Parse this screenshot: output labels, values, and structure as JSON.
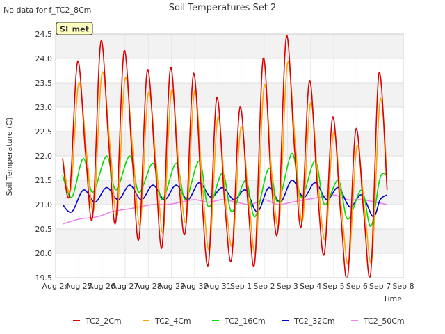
{
  "note": "No data for f_TC2_8Cm",
  "badge": "SI_met",
  "chart_data": {
    "type": "line",
    "title": "Soil Temperatures Set 2",
    "xlabel": "Time",
    "ylabel": "Soil Temperature (C)",
    "x_ticks": [
      "Aug 24",
      "Aug 25",
      "Aug 26",
      "Aug 27",
      "Aug 28",
      "Aug 29",
      "Aug 30",
      "Aug 31",
      "Sep 1",
      "Sep 2",
      "Sep 3",
      "Sep 4",
      "Sep 5",
      "Sep 6",
      "Sep 7",
      "Sep 8"
    ],
    "y_ticks": [
      "19.5",
      "20.0",
      "20.5",
      "21.0",
      "21.5",
      "22.0",
      "22.5",
      "23.0",
      "23.5",
      "24.0",
      "24.5"
    ],
    "xlim": [
      0,
      15
    ],
    "ylim": [
      19.5,
      24.5
    ],
    "grid": true,
    "legend_position": "bottom",
    "series": [
      {
        "name": "TC2_2Cm",
        "color": "#dd0000",
        "points": [
          [
            0.3,
            21.95
          ],
          [
            0.6,
            21.2
          ],
          [
            0.95,
            23.95
          ],
          [
            1.3,
            22.0
          ],
          [
            1.6,
            20.75
          ],
          [
            1.95,
            24.35
          ],
          [
            2.3,
            22.2
          ],
          [
            2.6,
            20.65
          ],
          [
            2.95,
            24.15
          ],
          [
            3.3,
            22.0
          ],
          [
            3.6,
            20.3
          ],
          [
            3.95,
            23.75
          ],
          [
            4.3,
            21.8
          ],
          [
            4.6,
            20.15
          ],
          [
            4.95,
            23.8
          ],
          [
            5.3,
            21.6
          ],
          [
            5.6,
            20.45
          ],
          [
            5.95,
            23.7
          ],
          [
            6.3,
            21.2
          ],
          [
            6.6,
            19.8
          ],
          [
            6.95,
            23.2
          ],
          [
            7.3,
            21.0
          ],
          [
            7.6,
            19.9
          ],
          [
            7.95,
            23.0
          ],
          [
            8.3,
            21.0
          ],
          [
            8.6,
            19.85
          ],
          [
            8.95,
            24.0
          ],
          [
            9.3,
            21.5
          ],
          [
            9.6,
            20.5
          ],
          [
            9.95,
            24.45
          ],
          [
            10.3,
            22.2
          ],
          [
            10.6,
            20.55
          ],
          [
            10.95,
            23.55
          ],
          [
            11.3,
            21.3
          ],
          [
            11.6,
            20.0
          ],
          [
            11.95,
            22.8
          ],
          [
            12.3,
            20.8
          ],
          [
            12.6,
            19.5
          ],
          [
            12.95,
            22.55
          ],
          [
            13.3,
            20.8
          ],
          [
            13.6,
            19.6
          ],
          [
            13.95,
            23.7
          ],
          [
            14.3,
            21.3
          ]
        ]
      },
      {
        "name": "TC2_4Cm",
        "color": "#ffa500",
        "points": [
          [
            0.3,
            21.95
          ],
          [
            0.65,
            21.3
          ],
          [
            1.0,
            23.5
          ],
          [
            1.35,
            22.0
          ],
          [
            1.65,
            20.9
          ],
          [
            2.0,
            23.7
          ],
          [
            2.35,
            22.2
          ],
          [
            2.65,
            20.8
          ],
          [
            3.0,
            23.6
          ],
          [
            3.35,
            22.0
          ],
          [
            3.65,
            20.6
          ],
          [
            4.0,
            23.3
          ],
          [
            4.35,
            21.8
          ],
          [
            4.65,
            20.45
          ],
          [
            5.0,
            23.35
          ],
          [
            5.35,
            21.6
          ],
          [
            5.65,
            20.7
          ],
          [
            6.0,
            23.35
          ],
          [
            6.35,
            21.3
          ],
          [
            6.65,
            20.1
          ],
          [
            7.0,
            22.8
          ],
          [
            7.35,
            21.0
          ],
          [
            7.65,
            20.2
          ],
          [
            8.0,
            22.6
          ],
          [
            8.35,
            21.0
          ],
          [
            8.65,
            20.1
          ],
          [
            9.0,
            23.45
          ],
          [
            9.35,
            21.5
          ],
          [
            9.65,
            20.65
          ],
          [
            10.0,
            23.9
          ],
          [
            10.35,
            22.2
          ],
          [
            10.65,
            20.65
          ],
          [
            11.0,
            23.1
          ],
          [
            11.35,
            21.3
          ],
          [
            11.65,
            20.3
          ],
          [
            12.0,
            22.5
          ],
          [
            12.35,
            20.85
          ],
          [
            12.65,
            19.8
          ],
          [
            13.0,
            22.2
          ],
          [
            13.35,
            20.8
          ],
          [
            13.65,
            19.9
          ],
          [
            14.0,
            23.15
          ],
          [
            14.3,
            21.6
          ]
        ]
      },
      {
        "name": "TC2_16Cm",
        "color": "#00dd00",
        "points": [
          [
            0.3,
            21.6
          ],
          [
            0.7,
            21.15
          ],
          [
            1.2,
            21.95
          ],
          [
            1.6,
            21.25
          ],
          [
            2.2,
            22.0
          ],
          [
            2.6,
            21.3
          ],
          [
            3.2,
            22.0
          ],
          [
            3.6,
            21.25
          ],
          [
            4.2,
            21.85
          ],
          [
            4.6,
            21.1
          ],
          [
            5.2,
            21.85
          ],
          [
            5.6,
            21.1
          ],
          [
            6.2,
            21.9
          ],
          [
            6.6,
            20.95
          ],
          [
            7.2,
            21.65
          ],
          [
            7.6,
            20.85
          ],
          [
            8.2,
            21.5
          ],
          [
            8.6,
            20.75
          ],
          [
            9.2,
            21.75
          ],
          [
            9.6,
            21.05
          ],
          [
            10.2,
            22.05
          ],
          [
            10.6,
            21.15
          ],
          [
            11.2,
            21.9
          ],
          [
            11.6,
            21.0
          ],
          [
            12.2,
            21.5
          ],
          [
            12.6,
            20.7
          ],
          [
            13.2,
            21.3
          ],
          [
            13.6,
            20.55
          ],
          [
            14.0,
            21.55
          ],
          [
            14.3,
            21.6
          ]
        ]
      },
      {
        "name": "TC2_32Cm",
        "color": "#0000cc",
        "points": [
          [
            0.3,
            21.0
          ],
          [
            0.7,
            20.85
          ],
          [
            1.2,
            21.3
          ],
          [
            1.7,
            21.05
          ],
          [
            2.2,
            21.35
          ],
          [
            2.7,
            21.1
          ],
          [
            3.2,
            21.4
          ],
          [
            3.7,
            21.1
          ],
          [
            4.2,
            21.4
          ],
          [
            4.7,
            21.1
          ],
          [
            5.2,
            21.4
          ],
          [
            5.7,
            21.1
          ],
          [
            6.2,
            21.45
          ],
          [
            6.7,
            21.15
          ],
          [
            7.2,
            21.35
          ],
          [
            7.7,
            21.1
          ],
          [
            8.2,
            21.3
          ],
          [
            8.7,
            20.85
          ],
          [
            9.2,
            21.35
          ],
          [
            9.7,
            21.05
          ],
          [
            10.2,
            21.5
          ],
          [
            10.7,
            21.15
          ],
          [
            11.2,
            21.45
          ],
          [
            11.7,
            21.1
          ],
          [
            12.2,
            21.35
          ],
          [
            12.7,
            20.95
          ],
          [
            13.2,
            21.2
          ],
          [
            13.7,
            20.75
          ],
          [
            14.0,
            21.1
          ],
          [
            14.3,
            21.2
          ]
        ]
      },
      {
        "name": "TC2_50Cm",
        "color": "#ee82ee",
        "points": [
          [
            0.3,
            20.6
          ],
          [
            1.0,
            20.7
          ],
          [
            1.8,
            20.75
          ],
          [
            2.4,
            20.85
          ],
          [
            3.0,
            20.9
          ],
          [
            3.6,
            20.95
          ],
          [
            4.2,
            21.0
          ],
          [
            4.8,
            21.0
          ],
          [
            5.4,
            21.05
          ],
          [
            6.0,
            21.1
          ],
          [
            6.6,
            21.05
          ],
          [
            7.2,
            21.1
          ],
          [
            7.8,
            21.05
          ],
          [
            8.4,
            21.0
          ],
          [
            9.0,
            21.1
          ],
          [
            9.6,
            21.0
          ],
          [
            10.2,
            21.05
          ],
          [
            10.8,
            21.1
          ],
          [
            11.4,
            21.15
          ],
          [
            12.0,
            21.2
          ],
          [
            12.6,
            21.1
          ],
          [
            13.2,
            21.1
          ],
          [
            13.8,
            21.05
          ],
          [
            14.3,
            21.0
          ]
        ]
      }
    ]
  }
}
